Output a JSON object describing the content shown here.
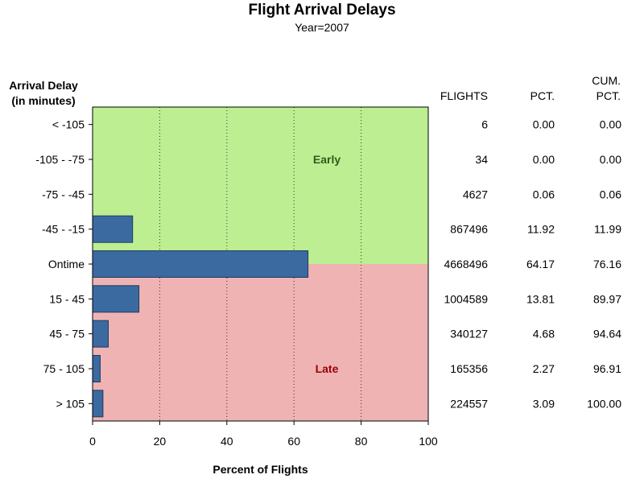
{
  "title": "Flight Arrival Delays",
  "subtitle": "Year=2007",
  "ylabel_line1": "Arrival Delay",
  "ylabel_line2": "(in minutes)",
  "xlabel": "Percent of Flights",
  "table_headers": {
    "flights": "FLIGHTS",
    "pct": "PCT.",
    "cum_line1": "CUM.",
    "cum_line2": "PCT."
  },
  "colors": {
    "bar": "#3b6aa0",
    "early_region": "#bdee92",
    "late_region": "#efb3b4",
    "early_text": "#2e5e1a",
    "late_text": "#9a0000"
  },
  "chart_data": {
    "type": "bar",
    "orientation": "horizontal",
    "title": "Flight Arrival Delays",
    "subtitle": "Year=2007",
    "xlabel": "Percent of Flights",
    "ylabel": "Arrival Delay (in minutes)",
    "xlim": [
      0,
      100
    ],
    "xticks": [
      0,
      20,
      40,
      60,
      80,
      100
    ],
    "grid": "vertical dotted",
    "categories": [
      "< -105",
      "-105 - -75",
      "-75 - -45",
      "-45 - -15",
      "Ontime",
      "15 - 45",
      "45 - 75",
      "75 - 105",
      "> 105"
    ],
    "values": [
      0.0,
      0.0,
      0.06,
      11.92,
      64.17,
      13.81,
      4.68,
      2.27,
      3.09
    ],
    "flights": [
      "6",
      "34",
      "4627",
      "867496",
      "4668496",
      "1004589",
      "340127",
      "165356",
      "224557"
    ],
    "pct": [
      "0.00",
      "0.00",
      "0.06",
      "11.92",
      "64.17",
      "13.81",
      "4.68",
      "2.27",
      "3.09"
    ],
    "cum_pct": [
      "0.00",
      "0.00",
      "0.06",
      "11.99",
      "76.16",
      "89.97",
      "94.64",
      "96.91",
      "100.00"
    ],
    "regions": [
      {
        "label": "Early",
        "from_category": "< -105",
        "to_category": "-45 - -15"
      },
      {
        "label": "Late",
        "from_category": "Ontime",
        "to_category": "> 105"
      }
    ]
  }
}
